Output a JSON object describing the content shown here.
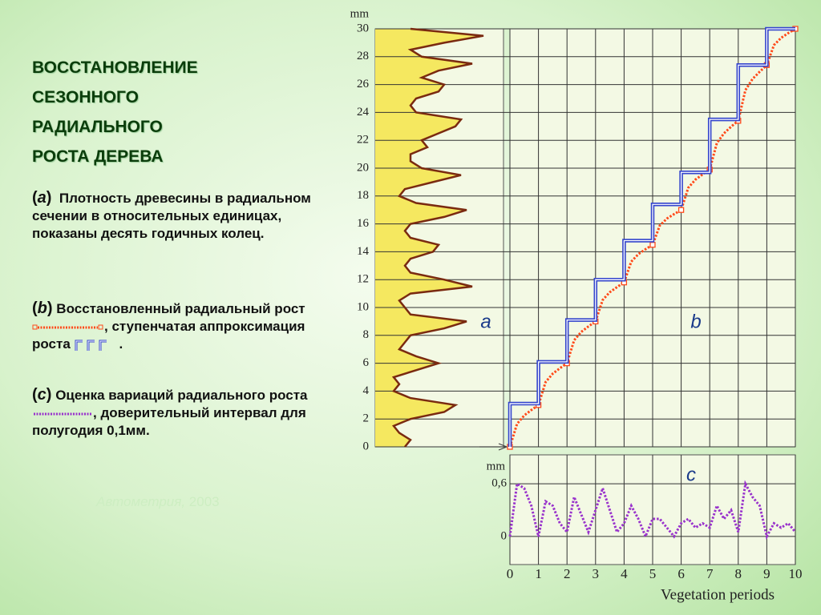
{
  "title": [
    "ВОССТАНОВЛЕНИЕ",
    "СЕЗОННОГО",
    "РАДИАЛЬНОГО",
    "РОСТА ДЕРЕВА"
  ],
  "captions": [
    {
      "label_parts": [
        "(",
        "a",
        ")"
      ],
      "text": "Плотность древесины в радиальном сечении в относительных единицах, показаны десять годичных колец."
    },
    {
      "label_parts": [
        "(",
        "b",
        ")"
      ],
      "text": "Восстановленный радиальный рост",
      "sep1": ",",
      "text2": "ступенчатая аппроксимация роста",
      "sep2": "."
    },
    {
      "label_parts": [
        "(",
        "c",
        ")"
      ],
      "text": "Оценка вариаций радиального роста",
      "sep1": ",",
      "text2": "доверительный интервал для полугодия 0,1мм."
    }
  ],
  "source": {
    "journal": "Автометрия,",
    "year": "2003"
  },
  "chart_data": [
    {
      "type": "area",
      "annotation": "a",
      "y_label": "mm",
      "color": "#7a2a10",
      "fill": "#f5e860",
      "ylim": [
        0,
        30
      ],
      "yticks": [
        0,
        2,
        4,
        6,
        8,
        10,
        12,
        14,
        16,
        18,
        20,
        22,
        24,
        26,
        28,
        30
      ],
      "x": [
        0,
        0.5,
        1,
        1.5,
        2,
        2.5,
        3,
        3.5,
        4,
        4.5,
        5,
        5.5,
        6,
        6.5,
        7,
        7.5,
        8,
        8.5,
        9,
        9.5,
        10,
        10.5,
        11,
        11.5,
        12,
        12.5,
        13,
        13.5,
        14,
        14.5,
        15,
        15.5,
        16,
        16.5,
        17,
        17.5,
        18,
        18.5,
        19,
        19.5,
        20,
        20.5,
        21,
        21.5,
        22,
        22.5,
        23,
        23.5,
        24,
        24.5,
        25,
        25.5,
        26,
        26.5,
        27,
        27.5,
        28,
        28.5,
        29,
        29.5,
        30
      ],
      "values": [
        0.25,
        0.3,
        0.2,
        0.15,
        0.3,
        0.6,
        0.7,
        0.3,
        0.15,
        0.2,
        0.15,
        0.35,
        0.55,
        0.35,
        0.2,
        0.25,
        0.3,
        0.6,
        0.8,
        0.3,
        0.25,
        0.2,
        0.3,
        0.85,
        0.6,
        0.3,
        0.25,
        0.3,
        0.5,
        0.55,
        0.3,
        0.25,
        0.3,
        0.6,
        0.8,
        0.35,
        0.2,
        0.25,
        0.5,
        0.75,
        0.4,
        0.3,
        0.3,
        0.45,
        0.4,
        0.55,
        0.7,
        0.75,
        0.35,
        0.3,
        0.35,
        0.55,
        0.6,
        0.4,
        0.55,
        0.85,
        0.4,
        0.3,
        0.6,
        0.95,
        0.3
      ]
    },
    {
      "type": "line",
      "annotation": "b",
      "ylim": [
        0,
        30
      ],
      "series": [
        {
          "color": "#ff4a1a",
          "x": [
            0,
            0.25,
            0.5,
            0.75,
            1,
            1.25,
            1.5,
            1.75,
            2,
            2.25,
            2.5,
            2.75,
            3,
            3.25,
            3.5,
            3.75,
            4,
            4.25,
            4.5,
            4.75,
            5,
            5.25,
            5.5,
            5.75,
            6,
            6.25,
            6.5,
            6.75,
            7,
            7.25,
            7.5,
            7.75,
            8,
            8.25,
            8.5,
            8.75,
            9,
            9.25,
            9.5,
            9.75,
            10
          ],
          "values": [
            0,
            1.65,
            2.25,
            2.64,
            3,
            4.65,
            5.25,
            5.64,
            6,
            7.65,
            8.25,
            8.64,
            9,
            10.54,
            11.1,
            11.46,
            11.8,
            13.29,
            13.83,
            14.18,
            14.5,
            15.88,
            16.38,
            16.7,
            17,
            18.6,
            19.18,
            19.55,
            19.9,
            21.8,
            22.5,
            22.98,
            23.4,
            25.6,
            26.4,
            26.92,
            27.4,
            28.83,
            29.35,
            29.69,
            30
          ]
        },
        {
          "color": "#3344cc",
          "step": true,
          "x": [
            0,
            1,
            2,
            3,
            4,
            5,
            6,
            7,
            8,
            9
          ],
          "values": [
            3.1,
            6.1,
            9.1,
            12.0,
            14.8,
            17.4,
            19.7,
            23.5,
            27.4,
            30.0
          ]
        }
      ]
    },
    {
      "type": "line",
      "annotation": "c",
      "y_label": "mm",
      "x_label": "Vegetation periods",
      "color": "#9933cc",
      "xlim": [
        0,
        10
      ],
      "xticks": [
        0,
        1,
        2,
        3,
        4,
        5,
        6,
        7,
        8,
        9,
        10
      ],
      "ylim": [
        -0.32,
        0.93
      ],
      "yticks": [
        0,
        {
          "value": 0.6,
          "label": "0,6"
        }
      ],
      "x": [
        0,
        0.25,
        0.5,
        0.75,
        1,
        1.25,
        1.5,
        1.75,
        2,
        2.25,
        2.5,
        2.75,
        3,
        3.25,
        3.5,
        3.75,
        4,
        4.25,
        4.5,
        4.75,
        5,
        5.25,
        5.5,
        5.75,
        6,
        6.25,
        6.5,
        6.75,
        7,
        7.25,
        7.5,
        7.75,
        8,
        8.25,
        8.5,
        8.75,
        9,
        9.25,
        9.5,
        9.75,
        10
      ],
      "values": [
        0,
        0.6,
        0.55,
        0.35,
        0,
        0.4,
        0.35,
        0.15,
        0.05,
        0.45,
        0.25,
        0.05,
        0.3,
        0.55,
        0.3,
        0.05,
        0.15,
        0.35,
        0.2,
        0,
        0.2,
        0.2,
        0.1,
        0,
        0.15,
        0.2,
        0.1,
        0.15,
        0.1,
        0.35,
        0.2,
        0.3,
        0.05,
        0.6,
        0.45,
        0.35,
        0,
        0.15,
        0.1,
        0.15,
        0.05
      ]
    }
  ]
}
